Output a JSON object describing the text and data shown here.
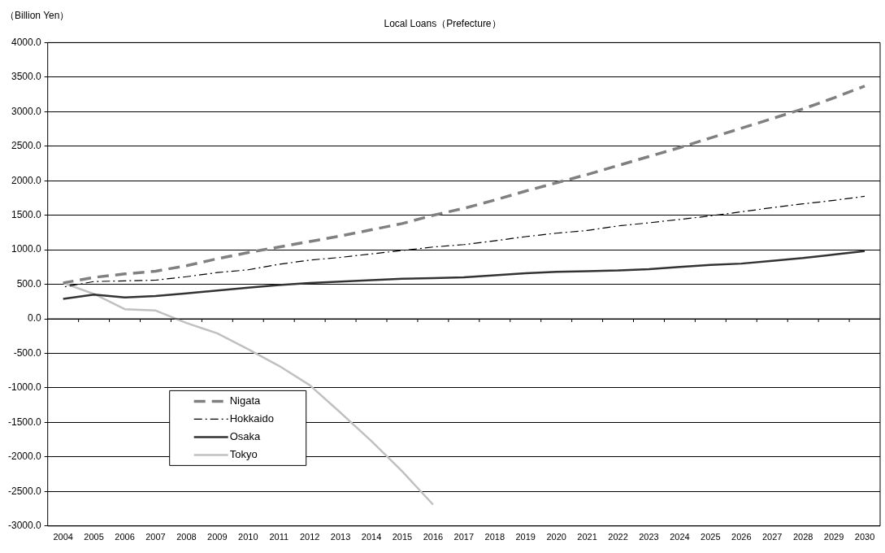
{
  "chart_data": {
    "type": "line",
    "title": "Local Loans（Prefecture）",
    "ylabel": "（Billion Yen）",
    "categories": [
      "2004",
      "2005",
      "2006",
      "2007",
      "2008",
      "2009",
      "2010",
      "2011",
      "2012",
      "2013",
      "2014",
      "2015",
      "2016",
      "2017",
      "2018",
      "2019",
      "2020",
      "2021",
      "2022",
      "2023",
      "2024",
      "2025",
      "2026",
      "2027",
      "2028",
      "2029",
      "2030"
    ],
    "series": [
      {
        "name": "Nigata",
        "color": "#808080",
        "line_style": "dashed",
        "values": [
          520,
          600,
          650,
          690,
          770,
          870,
          960,
          1040,
          1120,
          1200,
          1290,
          1380,
          1500,
          1600,
          1720,
          1850,
          1970,
          2090,
          2220,
          2350,
          2480,
          2620,
          2760,
          2900,
          3040,
          3200,
          3370
        ]
      },
      {
        "name": "Hokkaido",
        "color": "#000000",
        "line_style": "dashdot",
        "values": [
          460,
          540,
          550,
          560,
          610,
          670,
          710,
          790,
          850,
          890,
          940,
          990,
          1040,
          1075,
          1130,
          1190,
          1240,
          1280,
          1345,
          1390,
          1440,
          1490,
          1550,
          1610,
          1665,
          1715,
          1775
        ]
      },
      {
        "name": "Osaka",
        "color": "#333333",
        "line_style": "solid",
        "values": [
          290,
          350,
          310,
          330,
          370,
          410,
          450,
          490,
          520,
          540,
          560,
          580,
          590,
          600,
          630,
          660,
          680,
          690,
          700,
          720,
          750,
          780,
          800,
          840,
          880,
          930,
          980
        ]
      },
      {
        "name": "Tokyo",
        "color": "#c0c0c0",
        "line_style": "solid",
        "values": [
          520,
          360,
          140,
          120,
          -60,
          -210,
          -440,
          -680,
          -960,
          -1360,
          -1770,
          -2210,
          -2690,
          null,
          null,
          null,
          null,
          null,
          null,
          null,
          null,
          null,
          null,
          null,
          null,
          null,
          null
        ]
      }
    ],
    "ylim": [
      -3000,
      4000
    ],
    "yticks": [
      {
        "value": -3000,
        "label": "-3000.0"
      },
      {
        "value": -2500,
        "label": "-2500.0"
      },
      {
        "value": -2000,
        "label": "-2000.0"
      },
      {
        "value": -1500,
        "label": "-1500.0"
      },
      {
        "value": -1000,
        "label": "-1000.0"
      },
      {
        "value": -500,
        "label": "-500.0"
      },
      {
        "value": 0,
        "label": "0.0"
      },
      {
        "value": 500,
        "label": "500.0"
      },
      {
        "value": 1000,
        "label": "1000.0"
      },
      {
        "value": 1500,
        "label": "1500.0"
      },
      {
        "value": 2000,
        "label": "2000.0"
      },
      {
        "value": 2500,
        "label": "2500.0"
      },
      {
        "value": 3000,
        "label": "3000.0"
      },
      {
        "value": 3500,
        "label": "3500.0"
      },
      {
        "value": 4000,
        "label": "4000.0"
      }
    ],
    "grid": "y",
    "legend": "bottom left",
    "marker": "none"
  }
}
